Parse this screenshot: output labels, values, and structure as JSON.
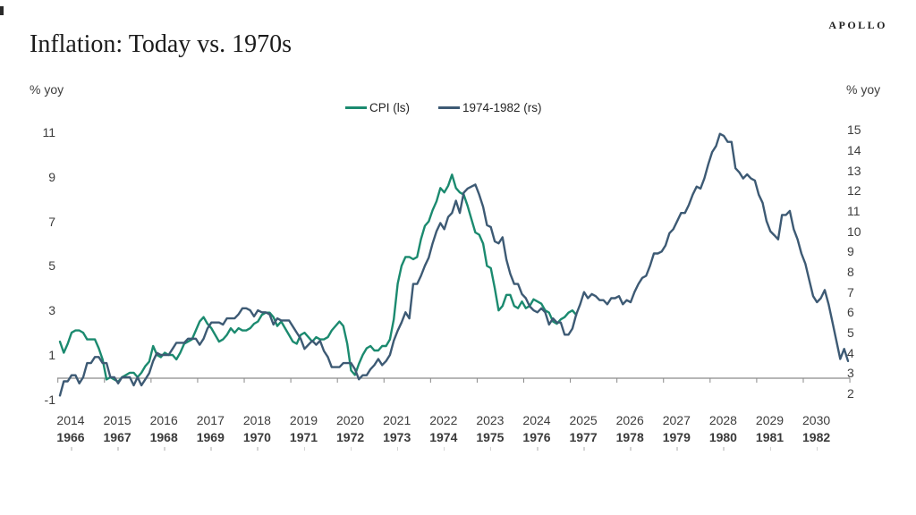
{
  "brand": "APOLLO",
  "title": "Inflation: Today vs. 1970s",
  "units": {
    "left": "% yoy",
    "right": "% yoy"
  },
  "chart_data": {
    "type": "line",
    "title": "Inflation: Today vs. 1970s",
    "left_axis": {
      "label": "% yoy",
      "ticks": [
        11,
        9,
        7,
        5,
        3,
        1,
        -1
      ],
      "range": [
        -1,
        11
      ]
    },
    "right_axis": {
      "label": "% yoy",
      "ticks": [
        15,
        14,
        13,
        12,
        11,
        10,
        9,
        8,
        7,
        6,
        5,
        4,
        3,
        2
      ],
      "range": [
        2,
        15
      ]
    },
    "x_axis": {
      "years_top": [
        "2014",
        "2015",
        "2016",
        "2017",
        "2018",
        "2019",
        "2020",
        "2021",
        "2022",
        "2023",
        "2024",
        "2025",
        "2026",
        "2027",
        "2028",
        "2029",
        "2030"
      ],
      "years_bottom": [
        "1966",
        "1967",
        "1968",
        "1969",
        "1970",
        "1971",
        "1972",
        "1973",
        "1974",
        "1975",
        "1976",
        "1977",
        "1978",
        "1979",
        "1980",
        "1981",
        "1982"
      ]
    },
    "legend": [
      {
        "name": "CPI (ls)",
        "color": "#1b8a6f"
      },
      {
        "name": "1974-1982 (rs)",
        "color": "#3d5a74"
      }
    ],
    "series": [
      {
        "name": "CPI (ls)",
        "axis": "left",
        "color": "#1b8a6f",
        "start": "2014-01",
        "freq": "monthly",
        "values": [
          1.6,
          1.1,
          1.5,
          2.0,
          2.1,
          2.1,
          2.0,
          1.7,
          1.7,
          1.7,
          1.3,
          0.8,
          -0.1,
          0.0,
          -0.1,
          -0.2,
          0.0,
          0.1,
          0.2,
          0.2,
          0.0,
          0.2,
          0.5,
          0.7,
          1.4,
          1.0,
          0.9,
          1.1,
          1.0,
          1.0,
          0.8,
          1.1,
          1.5,
          1.6,
          1.7,
          2.1,
          2.5,
          2.7,
          2.4,
          2.2,
          1.9,
          1.6,
          1.7,
          1.9,
          2.2,
          2.0,
          2.2,
          2.1,
          2.1,
          2.2,
          2.4,
          2.5,
          2.8,
          2.9,
          2.9,
          2.7,
          2.3,
          2.5,
          2.2,
          1.9,
          1.6,
          1.5,
          1.9,
          2.0,
          1.8,
          1.6,
          1.8,
          1.7,
          1.7,
          1.8,
          2.1,
          2.3,
          2.5,
          2.3,
          1.5,
          0.3,
          0.1,
          0.6,
          1.0,
          1.3,
          1.4,
          1.2,
          1.2,
          1.4,
          1.4,
          1.7,
          2.6,
          4.2,
          5.0,
          5.4,
          5.4,
          5.3,
          5.4,
          6.2,
          6.8,
          7.0,
          7.5,
          7.9,
          8.5,
          8.3,
          8.6,
          9.1,
          8.5,
          8.3,
          8.2,
          7.7,
          7.1,
          6.5,
          6.4,
          6.0,
          5.0,
          4.9,
          4.0,
          3.0,
          3.2,
          3.7,
          3.7,
          3.2,
          3.1,
          3.4,
          3.1,
          3.2,
          3.5,
          3.4,
          3.3,
          3.0,
          2.9,
          2.5,
          2.4,
          2.6,
          2.7,
          2.9,
          3.0,
          2.8
        ]
      },
      {
        "name": "1974-1982 (rs)",
        "axis": "right",
        "color": "#3d5a74",
        "start": "1966-01",
        "freq": "monthly",
        "values": [
          1.9,
          2.6,
          2.6,
          2.9,
          2.9,
          2.5,
          2.8,
          3.5,
          3.5,
          3.8,
          3.8,
          3.5,
          3.5,
          2.8,
          2.8,
          2.5,
          2.8,
          2.8,
          2.8,
          2.4,
          2.8,
          2.4,
          2.7,
          3.0,
          3.6,
          4.0,
          3.9,
          3.9,
          3.9,
          4.2,
          4.5,
          4.5,
          4.5,
          4.7,
          4.7,
          4.7,
          4.4,
          4.7,
          5.2,
          5.5,
          5.5,
          5.5,
          5.4,
          5.7,
          5.7,
          5.7,
          5.9,
          6.2,
          6.2,
          6.1,
          5.8,
          6.1,
          6.0,
          6.0,
          5.9,
          5.4,
          5.7,
          5.6,
          5.6,
          5.6,
          5.3,
          5.0,
          4.7,
          4.2,
          4.4,
          4.6,
          4.4,
          4.6,
          4.1,
          3.8,
          3.3,
          3.3,
          3.3,
          3.5,
          3.5,
          3.5,
          3.2,
          2.7,
          2.9,
          2.9,
          3.2,
          3.4,
          3.7,
          3.4,
          3.6,
          3.9,
          4.6,
          5.1,
          5.5,
          6.0,
          5.7,
          7.4,
          7.4,
          7.8,
          8.3,
          8.7,
          9.4,
          10.0,
          10.4,
          10.1,
          10.7,
          10.9,
          11.5,
          10.9,
          11.9,
          12.1,
          12.2,
          12.3,
          11.8,
          11.2,
          10.3,
          10.2,
          9.5,
          9.4,
          9.7,
          8.6,
          7.9,
          7.4,
          7.4,
          6.9,
          6.7,
          6.3,
          6.1,
          6.0,
          6.2,
          6.0,
          5.4,
          5.7,
          5.5,
          5.5,
          4.9,
          4.9,
          5.2,
          5.9,
          6.4,
          7.0,
          6.7,
          6.9,
          6.8,
          6.6,
          6.6,
          6.4,
          6.7,
          6.7,
          6.8,
          6.4,
          6.6,
          6.5,
          7.0,
          7.4,
          7.7,
          7.8,
          8.3,
          8.9,
          8.9,
          9.0,
          9.3,
          9.9,
          10.1,
          10.5,
          10.9,
          10.9,
          11.3,
          11.8,
          12.2,
          12.1,
          12.6,
          13.3,
          13.9,
          14.2,
          14.8,
          14.7,
          14.4,
          14.4,
          13.1,
          12.9,
          12.6,
          12.8,
          12.6,
          12.5,
          11.8,
          11.4,
          10.5,
          10.0,
          9.8,
          9.6,
          10.8,
          10.8,
          11.0,
          10.1,
          9.6,
          8.9,
          8.4,
          7.6,
          6.8,
          6.5,
          6.7,
          7.1,
          6.4,
          5.5,
          4.6,
          3.7,
          4.2,
          3.6
        ]
      }
    ],
    "layout": {
      "grid": false,
      "legend_position": "top-center"
    }
  }
}
